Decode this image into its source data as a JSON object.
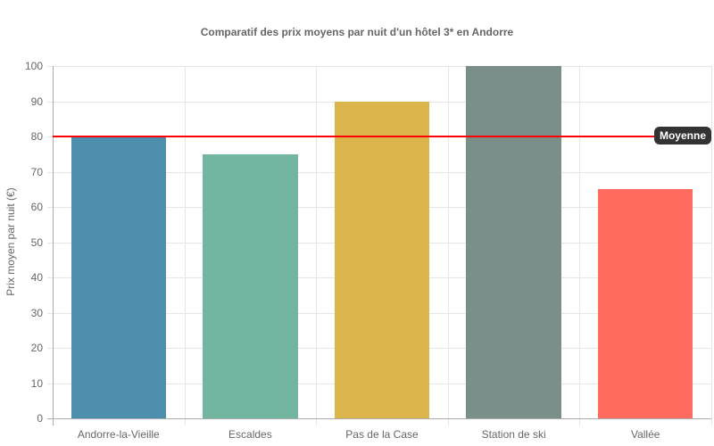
{
  "chart_data": {
    "type": "bar",
    "title": "Comparatif des prix moyens par nuit d'un hôtel 3* en Andorre",
    "xlabel": "",
    "ylabel": "Prix moyen par nuit (€)",
    "ylim": [
      0,
      100
    ],
    "yticks": [
      "0",
      "10",
      "20",
      "30",
      "40",
      "50",
      "60",
      "70",
      "80",
      "90",
      "100"
    ],
    "grid": true,
    "legend": "none",
    "categories": [
      "Andorre-la-Vieille",
      "Escaldes",
      "Pas de la Case",
      "Station de ski",
      "Vallée"
    ],
    "values": [
      80,
      75,
      90,
      100,
      65
    ],
    "colors": [
      "#4e8fad",
      "#72b5a0",
      "#dbb44b",
      "#7a8e8a",
      "#ff6b5e"
    ],
    "annotations": [
      {
        "type": "horizontal-line",
        "value": 80,
        "label": "Moyenne",
        "color": "#ff0000"
      }
    ]
  }
}
